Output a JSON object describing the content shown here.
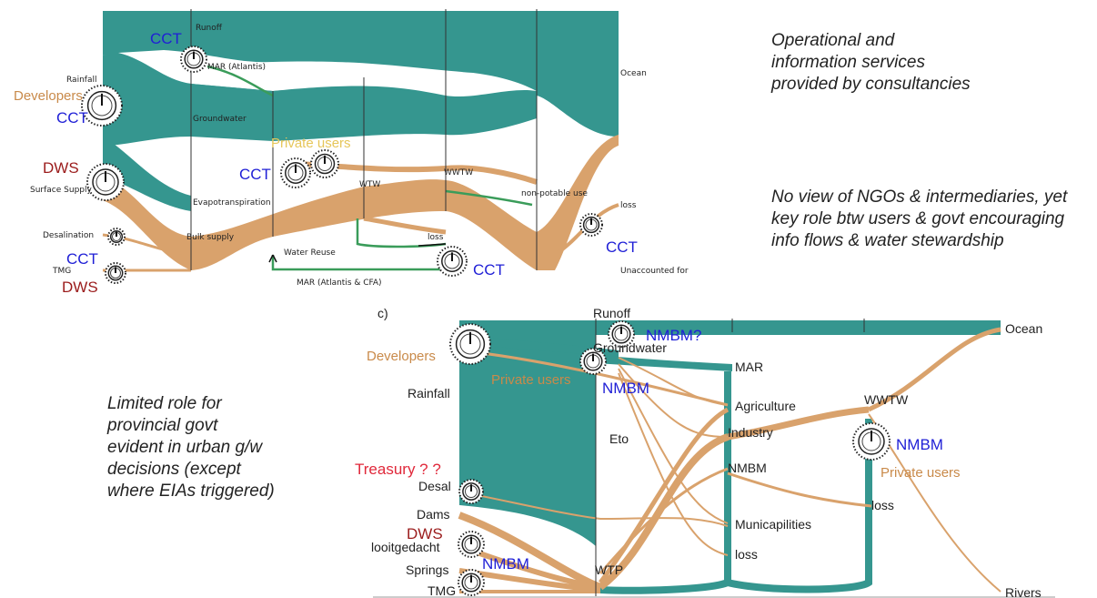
{
  "diagram_a": {
    "labels": [
      "Runoff",
      "MAR (Atlantis)",
      "Rainfall",
      "Groundwater",
      "Ocean",
      "Surface Supply",
      "Evapotranspiration",
      "WTW",
      "WWTW",
      "non-potable use",
      "loss",
      "loss",
      "Desalination",
      "Bulk supply",
      "Water Reuse",
      "TMG",
      "MAR (Atlantis & CFA)",
      "Unaccounted for"
    ],
    "actors": [
      "CCT",
      "Developers",
      "CCT",
      "DWS",
      "Private users",
      "CCT",
      "CCT",
      "DWS",
      "CCT",
      "CCT"
    ]
  },
  "notes": [
    "Operational and information services provided by consultancies",
    "No view of NGOs & intermediaries, yet key role btw users & govt encouraging info flows & water stewardship",
    "Limited role for provincial govt evident in urban g/w decisions (except where EIAs triggered)"
  ],
  "diagram_c": {
    "tag": "c)",
    "labels": [
      "Runoff",
      "Ocean",
      "Groundwater",
      "MAR",
      "Rainfall",
      "Agriculture",
      "WWTW",
      "Industry",
      "Eto",
      "NMBM",
      "Desal",
      "loss",
      "Dams",
      "Municapilities",
      "looitgedacht",
      "loss",
      "Springs",
      "WTP",
      "TMG",
      "Rivers"
    ],
    "actors": [
      "NMBM?",
      "Developers",
      "Private users",
      "NMBM",
      "NMBM",
      "Private users",
      "Treasury ? ?",
      "DWS",
      "NMBM"
    ]
  }
}
